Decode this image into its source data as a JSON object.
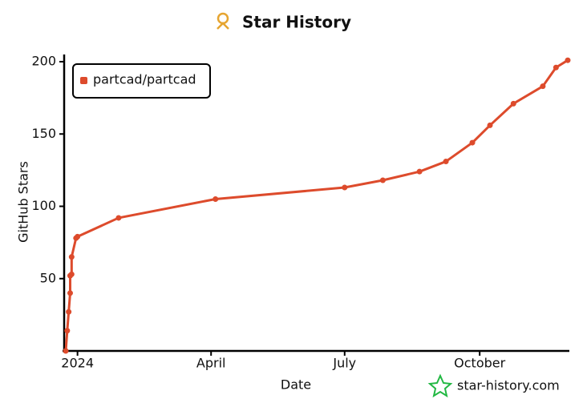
{
  "chart_data": {
    "type": "line",
    "title": "Star History",
    "x_label": "Date",
    "y_label": "GitHub Stars",
    "x": [
      "2023-12-24",
      "2023-12-25",
      "2023-12-26",
      "2023-12-27",
      "2023-12-27",
      "2023-12-28",
      "2023-12-28",
      "2023-12-31",
      "2024-01-01",
      "2024-01-29",
      "2024-04-04",
      "2024-07-01",
      "2024-07-27",
      "2024-08-21",
      "2024-09-08",
      "2024-09-26",
      "2024-10-08",
      "2024-10-24",
      "2024-11-13",
      "2024-11-22",
      "2024-11-30"
    ],
    "series": [
      {
        "name": "partcad/partcad",
        "color": "#dd4b2c",
        "values": [
          0,
          14,
          27,
          40,
          52,
          53,
          65,
          78,
          79,
          92,
          105,
          113,
          118,
          124,
          131,
          144,
          156,
          171,
          183,
          196,
          201
        ]
      }
    ],
    "xlim": [
      "2023-12-24",
      "2024-11-30"
    ],
    "xticks": [
      {
        "value": "2024-01-01",
        "label": "2024"
      },
      {
        "value": "2024-04-01",
        "label": "April"
      },
      {
        "value": "2024-07-01",
        "label": "July"
      },
      {
        "value": "2024-10-01",
        "label": "October"
      }
    ],
    "ylim": [
      0,
      200
    ],
    "yticks": [
      50,
      100,
      150,
      200
    ],
    "legend": "top-left",
    "watermark": "star-history.com"
  }
}
